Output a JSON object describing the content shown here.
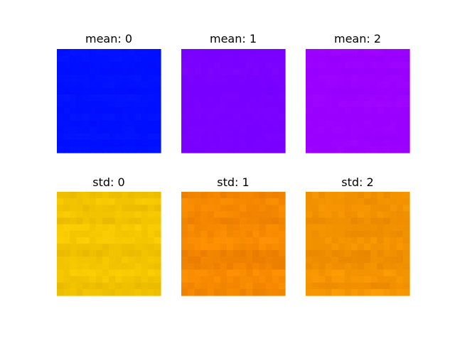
{
  "chart_data": {
    "type": "heatmap",
    "panels": [
      {
        "title": "mean: 0",
        "color": "#0010ff",
        "variation": "subtle"
      },
      {
        "title": "mean: 1",
        "color": "#7a00ff",
        "variation": "subtle"
      },
      {
        "title": "mean: 2",
        "color": "#9a00ff",
        "variation": "subtle"
      },
      {
        "title": "std: 0",
        "color": "#f2c400",
        "variation": "banded"
      },
      {
        "title": "std: 1",
        "color": "#f58800",
        "variation": "banded"
      },
      {
        "title": "std: 2",
        "color": "#f39200",
        "variation": "banded"
      }
    ],
    "grid": false,
    "axes_visible": false
  }
}
